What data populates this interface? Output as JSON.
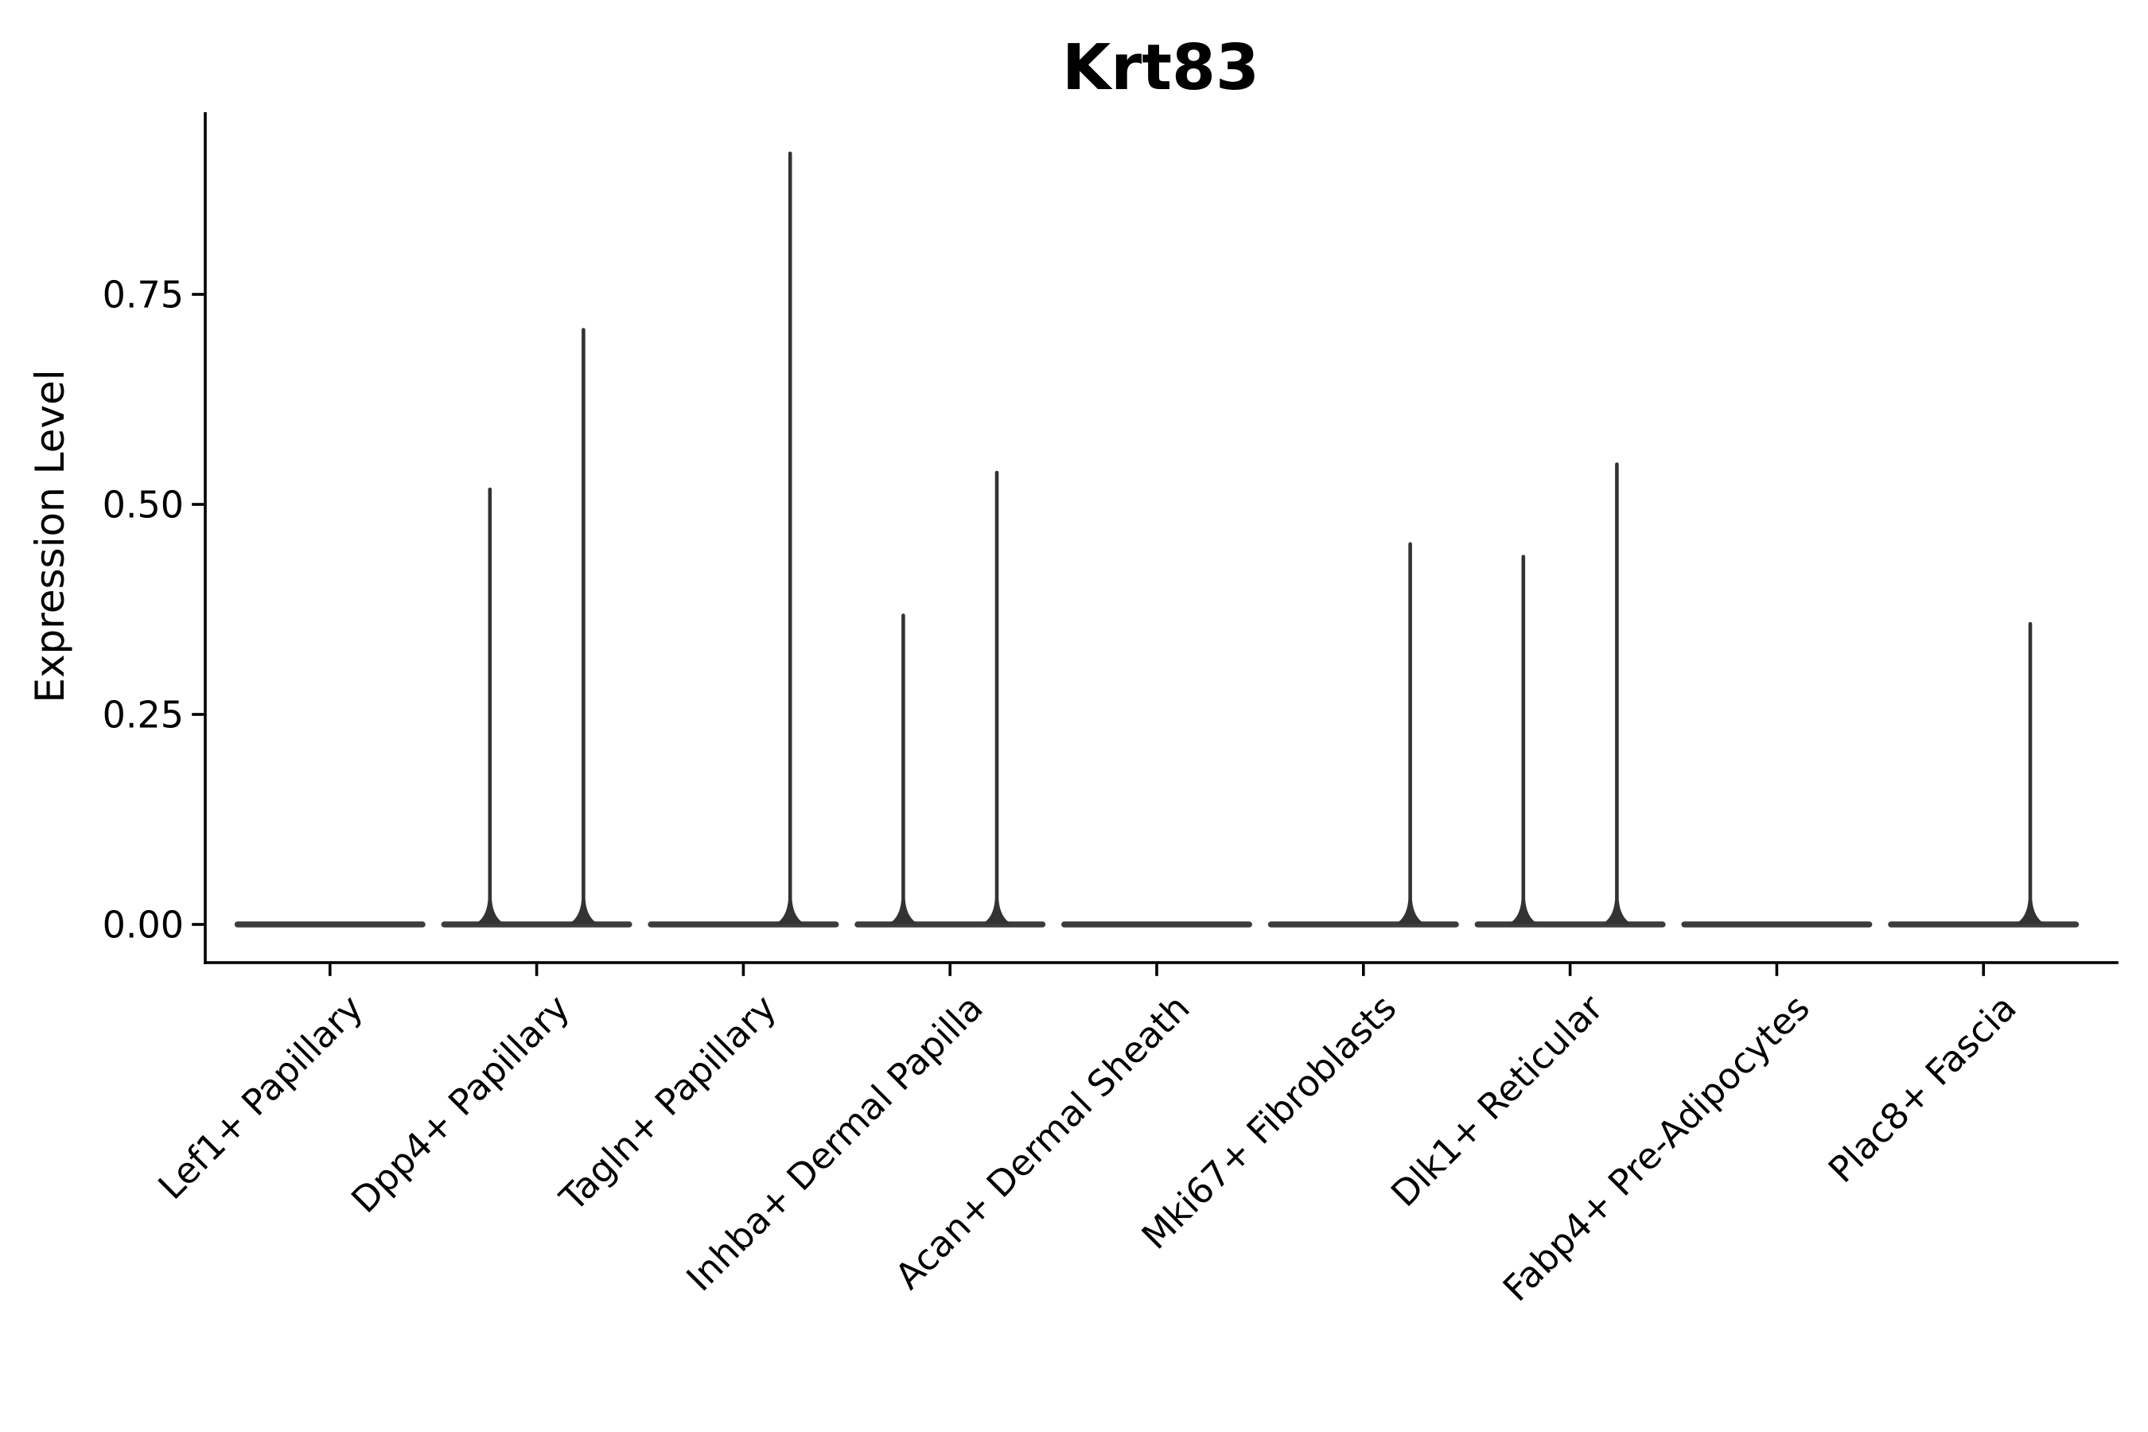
{
  "chart_data": {
    "type": "violin",
    "title": "Krt83",
    "ylabel": "Expression Level",
    "xlabel": "",
    "grid": false,
    "legend": null,
    "ylim": [
      -0.044,
      0.968
    ],
    "y_ticks": [
      {
        "value": 0.0,
        "label": "0.00"
      },
      {
        "value": 0.25,
        "label": "0.25"
      },
      {
        "value": 0.5,
        "label": "0.50"
      },
      {
        "value": 0.75,
        "label": "0.75"
      }
    ],
    "categories": [
      "Lef1+ Papillary",
      "Dpp4+ Papillary",
      "Tagln+ Papillary",
      "Inhba+ Dermal Papilla",
      "Acan+ Dermal Sheath",
      "Mki67+ Fibroblasts",
      "Dlk1+ Reticular",
      "Fabp4+ Pre-Adipocytes",
      "Plac8+ Fascia"
    ],
    "series": [
      {
        "name": "left-violin",
        "max_expression": [
          0,
          0.52,
          0,
          0.37,
          0,
          0,
          0.44,
          0,
          0
        ]
      },
      {
        "name": "right-violin",
        "max_expression": [
          0,
          0.71,
          0.92,
          0.54,
          0,
          0.455,
          0.55,
          0,
          0.36
        ]
      }
    ],
    "violin_color": "#3c3c3c",
    "spike_color": "#333333",
    "axis_color": "#000000"
  }
}
